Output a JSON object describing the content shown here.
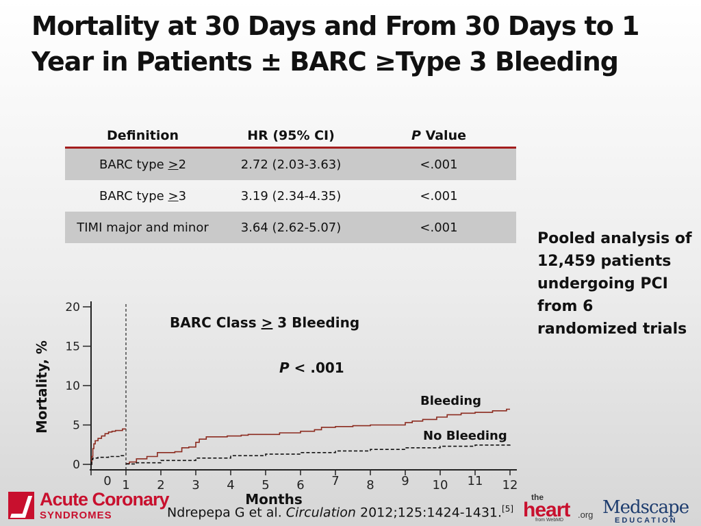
{
  "title": {
    "line1": "Mortality at 30 Days and From 30 Days to 1",
    "line2": "Year in Patients ± BARC ≥Type 3 Bleeding"
  },
  "table": {
    "headers": [
      "Definition",
      "HR (95% CI)",
      "P Value"
    ],
    "rows": [
      {
        "definition": "BARC type >2",
        "hr": "2.72 (2.03-3.63)",
        "p": "<.001"
      },
      {
        "definition": "BARC type >3",
        "hr": "3.19 (2.34-4.35)",
        "p": "<.001"
      },
      {
        "definition": "TIMI major and minor",
        "hr": "3.64 (2.62-5.07)",
        "p": "<.001"
      }
    ]
  },
  "side_note": {
    "lines": [
      "Pooled analysis of",
      "12,459 patients",
      "undergoing PCI",
      "from 6",
      "randomized trials"
    ]
  },
  "chart_data": {
    "type": "line",
    "title": "BARC Class > 3 Bleeding",
    "annotation": "P < .001",
    "xlabel": "Months",
    "ylabel": "Mortality, %",
    "xlim": [
      0,
      12
    ],
    "ylim": [
      0,
      20
    ],
    "x_ticks": [
      0,
      1,
      2,
      3,
      4,
      5,
      6,
      7,
      8,
      9,
      10,
      11,
      12
    ],
    "y_ticks": [
      0,
      5,
      10,
      15,
      20
    ],
    "landmark_x": 1,
    "series": [
      {
        "name": "Bleeding",
        "color": "#8b2a1e",
        "style": "solid",
        "segments": [
          [
            [
              0,
              0
            ],
            [
              0.02,
              1.0
            ],
            [
              0.05,
              2.0
            ],
            [
              0.08,
              2.6
            ],
            [
              0.12,
              3.0
            ],
            [
              0.2,
              3.3
            ],
            [
              0.3,
              3.6
            ],
            [
              0.4,
              3.9
            ],
            [
              0.5,
              4.1
            ],
            [
              0.6,
              4.2
            ],
            [
              0.7,
              4.3
            ],
            [
              0.8,
              4.3
            ],
            [
              0.9,
              4.5
            ],
            [
              1.0,
              4.5
            ]
          ],
          [
            [
              1.0,
              0.1
            ],
            [
              1.1,
              0.3
            ],
            [
              1.3,
              0.7
            ],
            [
              1.6,
              1.0
            ],
            [
              1.9,
              1.5
            ],
            [
              2.1,
              1.5
            ],
            [
              2.4,
              1.6
            ],
            [
              2.6,
              2.1
            ],
            [
              2.8,
              2.2
            ],
            [
              3.0,
              2.8
            ],
            [
              3.1,
              3.2
            ],
            [
              3.3,
              3.5
            ],
            [
              3.6,
              3.5
            ],
            [
              3.9,
              3.6
            ],
            [
              4.3,
              3.7
            ],
            [
              4.5,
              3.8
            ],
            [
              5.0,
              3.8
            ],
            [
              5.4,
              4.0
            ],
            [
              5.8,
              4.0
            ],
            [
              6.0,
              4.2
            ],
            [
              6.4,
              4.4
            ],
            [
              6.6,
              4.7
            ],
            [
              7.0,
              4.8
            ],
            [
              7.5,
              4.9
            ],
            [
              8.0,
              5.0
            ],
            [
              8.5,
              5.0
            ],
            [
              9.0,
              5.3
            ],
            [
              9.2,
              5.5
            ],
            [
              9.5,
              5.7
            ],
            [
              9.9,
              6.0
            ],
            [
              10.2,
              6.3
            ],
            [
              10.6,
              6.5
            ],
            [
              11.0,
              6.6
            ],
            [
              11.5,
              6.8
            ],
            [
              11.9,
              7.0
            ],
            [
              12.0,
              7.0
            ]
          ]
        ]
      },
      {
        "name": "No Bleeding",
        "color": "#111111",
        "style": "dashed",
        "segments": [
          [
            [
              0,
              0
            ],
            [
              0.02,
              0.6
            ],
            [
              0.05,
              0.8
            ],
            [
              0.2,
              0.9
            ],
            [
              0.5,
              1.0
            ],
            [
              0.8,
              1.1
            ],
            [
              1.0,
              1.1
            ]
          ],
          [
            [
              1.0,
              0.05
            ],
            [
              1.3,
              0.2
            ],
            [
              2.0,
              0.5
            ],
            [
              3.0,
              0.8
            ],
            [
              4.0,
              1.1
            ],
            [
              5.0,
              1.3
            ],
            [
              6.0,
              1.5
            ],
            [
              7.0,
              1.7
            ],
            [
              8.0,
              1.9
            ],
            [
              9.0,
              2.1
            ],
            [
              10.0,
              2.3
            ],
            [
              11.0,
              2.45
            ],
            [
              12.0,
              2.6
            ]
          ]
        ]
      }
    ]
  },
  "citation": {
    "authors": "Ndrepepa G et al. ",
    "journal": "Circulation",
    "details": " 2012;125:1424-1431.",
    "ref": "[5]"
  },
  "logos": {
    "acs_line1": "Acute Coronary",
    "acs_line2": "SYNDROMES",
    "heart_the": "the",
    "heart_main": "heart",
    "heart_org": ".org",
    "heart_sub": "from WebMD",
    "medscape_main": "Medscape",
    "medscape_sub": "EDUCATION"
  }
}
